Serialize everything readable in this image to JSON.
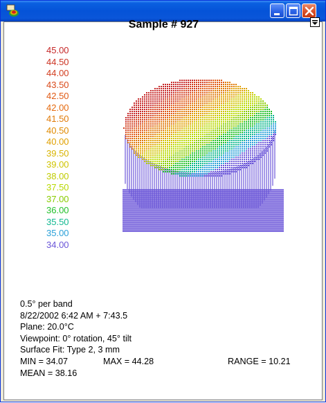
{
  "window": {
    "title": "",
    "colors": {
      "titlebar": "#0553d8",
      "close_button": "#d9512a",
      "client_bg": "#ffffff"
    }
  },
  "plot": {
    "title": "Sample # 927",
    "scale_labels": [
      {
        "value": "45.00",
        "color": "#c62828"
      },
      {
        "value": "44.50",
        "color": "#cc3322"
      },
      {
        "value": "44.00",
        "color": "#d23d1e"
      },
      {
        "value": "43.50",
        "color": "#d94a1a"
      },
      {
        "value": "42.50",
        "color": "#e05a14"
      },
      {
        "value": "42.00",
        "color": "#e56a0e"
      },
      {
        "value": "41.50",
        "color": "#e07a08"
      },
      {
        "value": "40.50",
        "color": "#e08a00"
      },
      {
        "value": "40.00",
        "color": "#e0a000"
      },
      {
        "value": "39.50",
        "color": "#d8b400"
      },
      {
        "value": "39.00",
        "color": "#d0c400"
      },
      {
        "value": "38.00",
        "color": "#c0cc00"
      },
      {
        "value": "37.50",
        "color": "#b8d800"
      },
      {
        "value": "37.00",
        "color": "#88cc00"
      },
      {
        "value": "36.00",
        "color": "#22c02a"
      },
      {
        "value": "35.50",
        "color": "#10b890"
      },
      {
        "value": "35.00",
        "color": "#2aa0d8"
      },
      {
        "value": "34.00",
        "color": "#6a55d8"
      }
    ]
  },
  "info": {
    "band": "0.5° per band",
    "datetime": "8/22/2002 6:42 AM + 7:43.5",
    "plane": "Plane: 20.0°C",
    "viewpoint": "Viewpoint: 0° rotation, 45° tilt",
    "surface_fit": "Surface Fit: Type 2, 3 mm",
    "min": "MIN = 34.07",
    "max": "MAX = 44.28",
    "range": "RANGE = 10.21",
    "mean": "MEAN = 38.16"
  },
  "icons": {
    "app": "app-icon",
    "minimize": "minimize-icon",
    "maximize": "maximize-icon",
    "close": "close-icon",
    "dropdown": "dropdown-arrow-icon"
  }
}
